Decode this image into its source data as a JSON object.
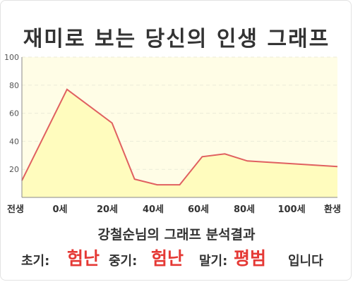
{
  "title": "재미로 보는 당신의 인생 그래프",
  "subtitle": "강철순님의 그래프 분석결과",
  "result": {
    "early_label": "초기:",
    "early_value": "험난",
    "mid_label": "중기:",
    "mid_value": "험난",
    "late_label": "말기:",
    "late_value": "평범",
    "suffix": "입니다"
  },
  "colors": {
    "line": "#e06060",
    "fill": "#fffcbe",
    "plot_bg": "#fffde6",
    "accent": "#e53935"
  },
  "chart_data": {
    "type": "area",
    "title": "재미로 보는 당신의 인생 그래프",
    "xlabel": "",
    "ylabel": "",
    "x_tick_labels": [
      "전생",
      "0세",
      "20세",
      "40세",
      "60세",
      "80세",
      "100세",
      "환생"
    ],
    "y_ticks": [
      20,
      40,
      60,
      80,
      100
    ],
    "ylim": [
      0,
      100
    ],
    "grid": true,
    "points": [
      {
        "x": -20,
        "y": 12
      },
      {
        "x": 0,
        "y": 77
      },
      {
        "x": 20,
        "y": 53
      },
      {
        "x": 30,
        "y": 13
      },
      {
        "x": 40,
        "y": 9
      },
      {
        "x": 50,
        "y": 9
      },
      {
        "x": 60,
        "y": 29
      },
      {
        "x": 70,
        "y": 31
      },
      {
        "x": 80,
        "y": 26
      },
      {
        "x": 90,
        "y": 25
      },
      {
        "x": 100,
        "y": 24
      },
      {
        "x": 120,
        "y": 22
      }
    ]
  }
}
